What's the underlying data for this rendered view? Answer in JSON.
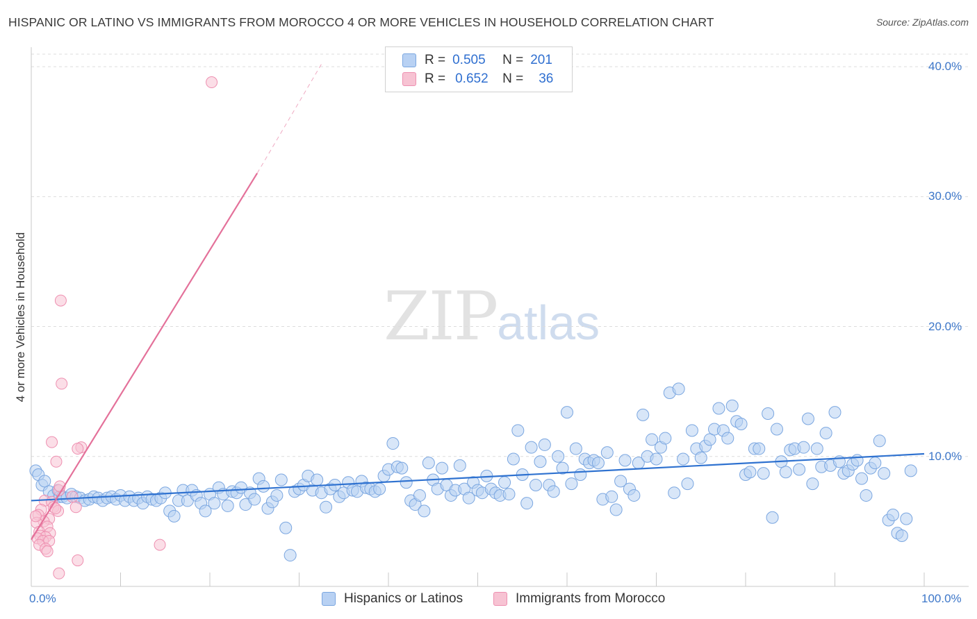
{
  "header": {
    "title": "HISPANIC OR LATINO VS IMMIGRANTS FROM MOROCCO 4 OR MORE VEHICLES IN HOUSEHOLD CORRELATION CHART",
    "source": "Source: ZipAtlas.com"
  },
  "watermark": {
    "zip": "ZIP",
    "atlas": "atlas"
  },
  "legend": {
    "row1": {
      "r_label": "R =",
      "r_value": "0.505",
      "n_label": "N =",
      "n_value": "201"
    },
    "row2": {
      "r_label": "R =",
      "r_value": "0.652",
      "n_label": "N =",
      "n_value": "36"
    }
  },
  "colors": {
    "blue_fill": "#b8d1f3",
    "blue_stroke": "#7aa6e0",
    "blue_line": "#2f72d0",
    "pink_fill": "#f7c3d3",
    "pink_stroke": "#ee8fb0",
    "pink_line": "#e4719a",
    "grid": "#dcdcdc",
    "tick_text": "#3d77c9"
  },
  "chart_data": {
    "type": "scatter",
    "title": "HISPANIC OR LATINO VS IMMIGRANTS FROM MOROCCO 4 OR MORE VEHICLES IN HOUSEHOLD CORRELATION CHART",
    "xlabel": "",
    "ylabel": "4 or more Vehicles in Household",
    "xlim": [
      0,
      100
    ],
    "ylim": [
      0,
      41.5
    ],
    "x_tick_labels": [
      "0.0%",
      "100.0%"
    ],
    "y_ticks": [
      10,
      20,
      30,
      40
    ],
    "y_tick_labels": [
      "10.0%",
      "20.0%",
      "30.0%",
      "40.0%"
    ],
    "grid": "horizontal dashed",
    "legend_position": "top-center",
    "series": [
      {
        "name": "Hispanics or Latinos",
        "r": 0.505,
        "n": 201,
        "trend": {
          "x": [
            0,
            100
          ],
          "y": [
            6.6,
            10.2
          ]
        },
        "points": [
          [
            0.5,
            8.9
          ],
          [
            0.8,
            8.6
          ],
          [
            1.2,
            7.8
          ],
          [
            1.5,
            8.1
          ],
          [
            2.0,
            7.3
          ],
          [
            2.5,
            7.0
          ],
          [
            3.0,
            7.4
          ],
          [
            3.2,
            6.9
          ],
          [
            3.5,
            6.9
          ],
          [
            4.0,
            6.8
          ],
          [
            4.5,
            7.1
          ],
          [
            5.0,
            6.9
          ],
          [
            5.5,
            6.8
          ],
          [
            6.0,
            6.6
          ],
          [
            6.5,
            6.7
          ],
          [
            7.0,
            6.9
          ],
          [
            7.5,
            6.8
          ],
          [
            8.0,
            6.6
          ],
          [
            8.5,
            6.8
          ],
          [
            9.0,
            6.9
          ],
          [
            9.5,
            6.7
          ],
          [
            10.0,
            7.0
          ],
          [
            10.5,
            6.6
          ],
          [
            11.0,
            6.9
          ],
          [
            11.5,
            6.6
          ],
          [
            12.0,
            6.8
          ],
          [
            12.5,
            6.4
          ],
          [
            13.0,
            6.9
          ],
          [
            13.5,
            6.7
          ],
          [
            14.0,
            6.6
          ],
          [
            14.5,
            6.8
          ],
          [
            15.0,
            7.2
          ],
          [
            15.5,
            5.8
          ],
          [
            16.0,
            5.4
          ],
          [
            16.5,
            6.6
          ],
          [
            17.0,
            7.4
          ],
          [
            17.5,
            6.6
          ],
          [
            18.0,
            7.4
          ],
          [
            18.5,
            7.0
          ],
          [
            19.0,
            6.4
          ],
          [
            19.5,
            5.8
          ],
          [
            20.0,
            7.1
          ],
          [
            20.5,
            6.4
          ],
          [
            21.0,
            7.6
          ],
          [
            21.5,
            7.1
          ],
          [
            22.0,
            6.2
          ],
          [
            22.5,
            7.3
          ],
          [
            23.0,
            7.2
          ],
          [
            23.5,
            7.6
          ],
          [
            24.0,
            6.3
          ],
          [
            24.5,
            7.2
          ],
          [
            25.0,
            6.7
          ],
          [
            25.5,
            8.3
          ],
          [
            26.0,
            7.7
          ],
          [
            26.5,
            6.0
          ],
          [
            27.0,
            6.5
          ],
          [
            27.5,
            7.0
          ],
          [
            28.0,
            8.2
          ],
          [
            28.5,
            4.5
          ],
          [
            29.0,
            2.4
          ],
          [
            29.5,
            7.3
          ],
          [
            30.0,
            7.5
          ],
          [
            30.5,
            7.8
          ],
          [
            31.0,
            8.5
          ],
          [
            31.5,
            7.4
          ],
          [
            32.0,
            8.2
          ],
          [
            32.5,
            7.2
          ],
          [
            33.0,
            6.1
          ],
          [
            33.5,
            7.5
          ],
          [
            34.0,
            7.8
          ],
          [
            34.5,
            6.9
          ],
          [
            35.0,
            7.2
          ],
          [
            35.5,
            8.0
          ],
          [
            36.0,
            7.4
          ],
          [
            36.5,
            7.3
          ],
          [
            37.0,
            8.1
          ],
          [
            37.5,
            7.6
          ],
          [
            38.0,
            7.5
          ],
          [
            38.5,
            7.3
          ],
          [
            39.0,
            7.5
          ],
          [
            39.5,
            8.5
          ],
          [
            40.0,
            9.0
          ],
          [
            40.5,
            11.0
          ],
          [
            41.0,
            9.2
          ],
          [
            41.5,
            9.1
          ],
          [
            42.0,
            8.0
          ],
          [
            42.5,
            6.6
          ],
          [
            43.0,
            6.3
          ],
          [
            43.5,
            7.0
          ],
          [
            44.0,
            5.8
          ],
          [
            44.5,
            9.5
          ],
          [
            45.0,
            8.2
          ],
          [
            45.5,
            7.5
          ],
          [
            46.0,
            9.1
          ],
          [
            46.5,
            7.8
          ],
          [
            47.0,
            7.0
          ],
          [
            47.5,
            7.4
          ],
          [
            48.0,
            9.3
          ],
          [
            48.5,
            7.5
          ],
          [
            49.0,
            6.8
          ],
          [
            49.5,
            8.0
          ],
          [
            50.0,
            7.4
          ],
          [
            50.5,
            7.2
          ],
          [
            51.0,
            8.5
          ],
          [
            51.5,
            7.5
          ],
          [
            52.0,
            7.2
          ],
          [
            52.5,
            7.0
          ],
          [
            53.0,
            8.0
          ],
          [
            53.5,
            7.1
          ],
          [
            54.0,
            9.8
          ],
          [
            54.5,
            12.0
          ],
          [
            55.0,
            8.6
          ],
          [
            55.5,
            6.4
          ],
          [
            56.0,
            10.7
          ],
          [
            56.5,
            7.8
          ],
          [
            57.0,
            9.6
          ],
          [
            57.5,
            10.9
          ],
          [
            58.0,
            7.8
          ],
          [
            58.5,
            7.3
          ],
          [
            59.0,
            10.0
          ],
          [
            59.5,
            9.1
          ],
          [
            60.0,
            13.4
          ],
          [
            60.5,
            7.9
          ],
          [
            61.0,
            10.6
          ],
          [
            61.5,
            8.6
          ],
          [
            62.0,
            9.8
          ],
          [
            62.5,
            9.5
          ],
          [
            63.0,
            9.7
          ],
          [
            63.5,
            9.5
          ],
          [
            64.0,
            6.7
          ],
          [
            64.5,
            10.3
          ],
          [
            65.0,
            6.9
          ],
          [
            65.5,
            5.9
          ],
          [
            66.0,
            8.1
          ],
          [
            66.5,
            9.7
          ],
          [
            67.0,
            7.5
          ],
          [
            67.5,
            7.0
          ],
          [
            68.0,
            9.5
          ],
          [
            68.5,
            13.2
          ],
          [
            69.0,
            10.0
          ],
          [
            69.5,
            11.3
          ],
          [
            70.0,
            9.8
          ],
          [
            70.5,
            10.7
          ],
          [
            71.0,
            11.4
          ],
          [
            71.5,
            14.9
          ],
          [
            72.0,
            7.2
          ],
          [
            72.5,
            15.2
          ],
          [
            73.0,
            9.8
          ],
          [
            73.5,
            7.9
          ],
          [
            74.0,
            12.0
          ],
          [
            74.5,
            10.6
          ],
          [
            75.0,
            9.9
          ],
          [
            75.5,
            10.8
          ],
          [
            76.0,
            11.3
          ],
          [
            76.5,
            12.1
          ],
          [
            77.0,
            13.7
          ],
          [
            77.5,
            12.0
          ],
          [
            78.0,
            11.4
          ],
          [
            78.5,
            13.9
          ],
          [
            79.0,
            12.7
          ],
          [
            79.5,
            12.5
          ],
          [
            80.0,
            8.6
          ],
          [
            80.5,
            8.8
          ],
          [
            81.0,
            10.6
          ],
          [
            81.5,
            10.6
          ],
          [
            82.0,
            8.7
          ],
          [
            82.5,
            13.3
          ],
          [
            83.0,
            5.3
          ],
          [
            83.5,
            12.1
          ],
          [
            84.0,
            9.6
          ],
          [
            84.5,
            8.8
          ],
          [
            85.0,
            10.5
          ],
          [
            85.5,
            10.6
          ],
          [
            86.0,
            9.0
          ],
          [
            86.5,
            10.7
          ],
          [
            87.0,
            12.9
          ],
          [
            87.5,
            7.9
          ],
          [
            88.0,
            10.6
          ],
          [
            88.5,
            9.2
          ],
          [
            89.0,
            11.8
          ],
          [
            89.5,
            9.3
          ],
          [
            90.0,
            13.4
          ],
          [
            90.5,
            9.6
          ],
          [
            91.0,
            8.7
          ],
          [
            91.5,
            8.9
          ],
          [
            92.0,
            9.4
          ],
          [
            92.5,
            9.7
          ],
          [
            93.0,
            8.3
          ],
          [
            93.5,
            7.0
          ],
          [
            94.0,
            9.1
          ],
          [
            94.5,
            9.5
          ],
          [
            95.0,
            11.2
          ],
          [
            95.5,
            8.7
          ],
          [
            96.0,
            5.1
          ],
          [
            96.5,
            5.5
          ],
          [
            97.0,
            4.1
          ],
          [
            97.5,
            3.9
          ],
          [
            98.0,
            5.2
          ],
          [
            98.5,
            8.9
          ]
        ]
      },
      {
        "name": "Immigrants from Morocco",
        "r": 0.652,
        "n": 36,
        "trend": {
          "x": [
            0,
            25.3
          ],
          "y": [
            3.6,
            31.8
          ]
        },
        "trend_dashed": {
          "x": [
            25.3,
            32.5
          ],
          "y": [
            31.8,
            40.2
          ]
        },
        "points": [
          [
            20.2,
            38.8
          ],
          [
            3.3,
            22.0
          ],
          [
            3.4,
            15.6
          ],
          [
            2.3,
            11.1
          ],
          [
            5.6,
            10.7
          ],
          [
            5.2,
            10.6
          ],
          [
            2.8,
            9.6
          ],
          [
            3.1,
            7.4
          ],
          [
            1.5,
            6.6
          ],
          [
            2.3,
            6.5
          ],
          [
            3.2,
            7.7
          ],
          [
            4.6,
            6.9
          ],
          [
            2.5,
            6.1
          ],
          [
            5.0,
            6.1
          ],
          [
            1.1,
            5.9
          ],
          [
            0.8,
            5.5
          ],
          [
            2.0,
            5.2
          ],
          [
            3.0,
            5.8
          ],
          [
            1.4,
            5.0
          ],
          [
            0.6,
            4.9
          ],
          [
            1.8,
            4.6
          ],
          [
            0.9,
            4.2
          ],
          [
            2.1,
            4.1
          ],
          [
            1.0,
            3.9
          ],
          [
            1.6,
            3.8
          ],
          [
            0.7,
            3.7
          ],
          [
            1.3,
            3.5
          ],
          [
            2.0,
            3.5
          ],
          [
            0.9,
            3.2
          ],
          [
            1.6,
            2.9
          ],
          [
            1.8,
            2.7
          ],
          [
            14.4,
            3.2
          ],
          [
            5.2,
            2.0
          ],
          [
            3.1,
            1.0
          ],
          [
            0.5,
            5.4
          ],
          [
            2.7,
            6.0
          ]
        ]
      }
    ]
  },
  "axes": {
    "y_label": "4 or more Vehicles in Household",
    "y_ticks": [
      "10.0%",
      "20.0%",
      "30.0%",
      "40.0%"
    ],
    "x_left": "0.0%",
    "x_right": "100.0%"
  },
  "bottom_legend": {
    "item1": "Hispanics or Latinos",
    "item2": "Immigrants from Morocco"
  }
}
